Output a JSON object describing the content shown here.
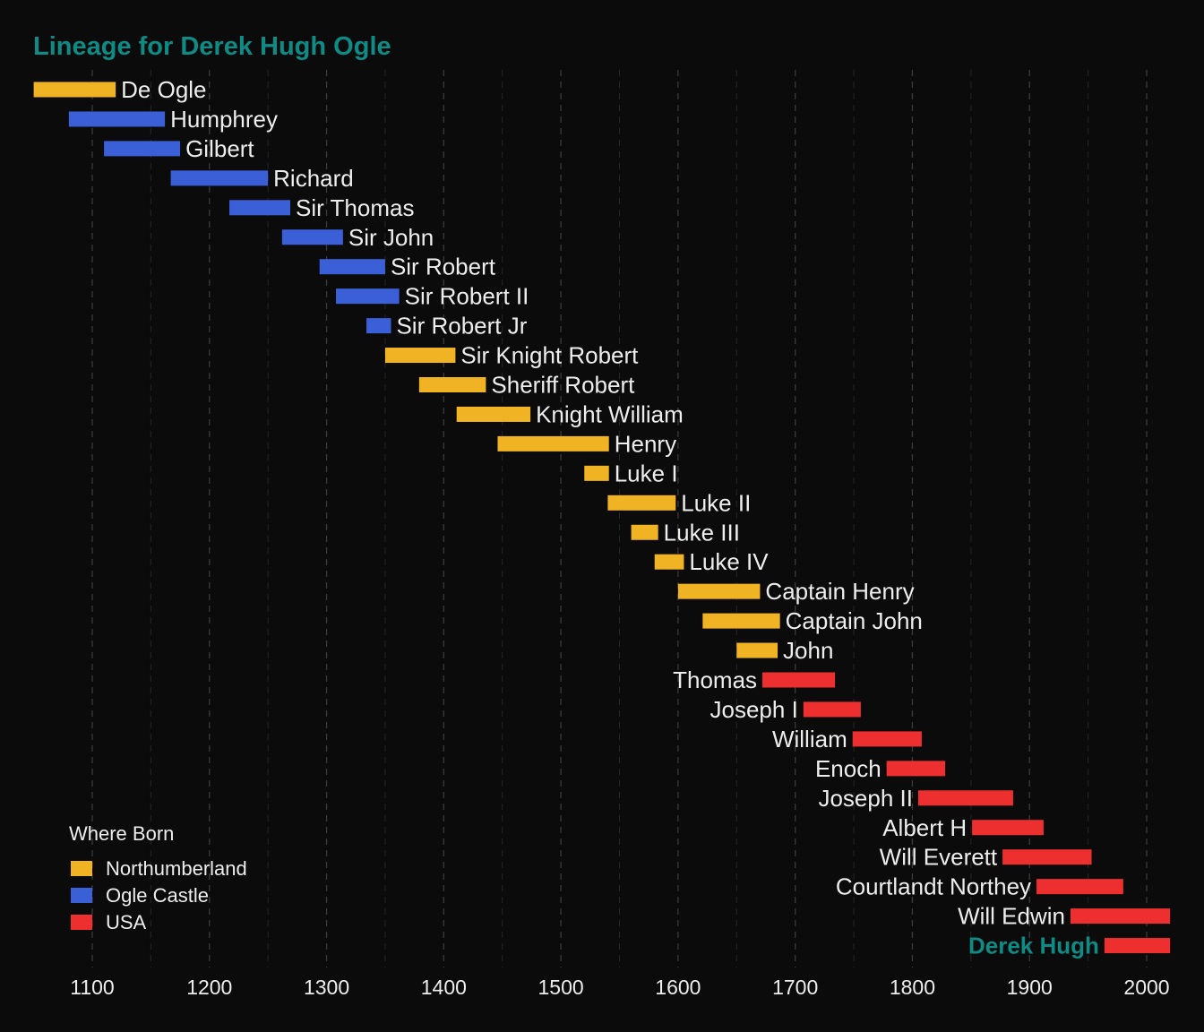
{
  "chart_data": {
    "type": "bar",
    "orientation": "horizontal-timeline",
    "title": "Lineage for Derek Hugh Ogle",
    "xlim": [
      1050,
      2020
    ],
    "xticks": [
      1100,
      1200,
      1300,
      1400,
      1500,
      1600,
      1700,
      1800,
      1900,
      2000
    ],
    "grid": true,
    "legend": {
      "title": "Where Born",
      "placement": "bottom-left",
      "entries": [
        {
          "name": "Northumberland",
          "color": "#f0b323"
        },
        {
          "name": "Ogle Castle",
          "color": "#3a5fd6"
        },
        {
          "name": "USA",
          "color": "#ee2f2f"
        }
      ]
    },
    "highlight": "Derek Hugh",
    "people": [
      {
        "name": "De Ogle",
        "start": 1050,
        "end": 1120,
        "born": "Northumberland",
        "label_side": "right"
      },
      {
        "name": "Humphrey",
        "start": 1080,
        "end": 1162,
        "born": "Ogle Castle",
        "label_side": "right"
      },
      {
        "name": "Gilbert",
        "start": 1110,
        "end": 1175,
        "born": "Ogle Castle",
        "label_side": "right"
      },
      {
        "name": "Richard",
        "start": 1167,
        "end": 1250,
        "born": "Ogle Castle",
        "label_side": "right"
      },
      {
        "name": "Sir Thomas",
        "start": 1217,
        "end": 1269,
        "born": "Ogle Castle",
        "label_side": "right"
      },
      {
        "name": "Sir John",
        "start": 1262,
        "end": 1314,
        "born": "Ogle Castle",
        "label_side": "right"
      },
      {
        "name": "Sir Robert",
        "start": 1294,
        "end": 1350,
        "born": "Ogle Castle",
        "label_side": "right"
      },
      {
        "name": "Sir Robert II",
        "start": 1308,
        "end": 1362,
        "born": "Ogle Castle",
        "label_side": "right"
      },
      {
        "name": "Sir Robert Jr",
        "start": 1334,
        "end": 1355,
        "born": "Ogle Castle",
        "label_side": "right"
      },
      {
        "name": "Sir Knight Robert",
        "start": 1350,
        "end": 1410,
        "born": "Northumberland",
        "label_side": "right"
      },
      {
        "name": "Sheriff Robert",
        "start": 1379,
        "end": 1436,
        "born": "Northumberland",
        "label_side": "right"
      },
      {
        "name": "Knight William",
        "start": 1411,
        "end": 1474,
        "born": "Northumberland",
        "label_side": "right"
      },
      {
        "name": "Henry",
        "start": 1446,
        "end": 1541,
        "born": "Northumberland",
        "label_side": "right"
      },
      {
        "name": "Luke I",
        "start": 1520,
        "end": 1541,
        "born": "Northumberland",
        "label_side": "right"
      },
      {
        "name": "Luke II",
        "start": 1540,
        "end": 1598,
        "born": "Northumberland",
        "label_side": "right"
      },
      {
        "name": "Luke III",
        "start": 1560,
        "end": 1583,
        "born": "Northumberland",
        "label_side": "right"
      },
      {
        "name": "Luke IV",
        "start": 1580,
        "end": 1605,
        "born": "Northumberland",
        "label_side": "right"
      },
      {
        "name": "Captain Henry",
        "start": 1600,
        "end": 1670,
        "born": "Northumberland",
        "label_side": "right"
      },
      {
        "name": "Captain John",
        "start": 1621,
        "end": 1687,
        "born": "Northumberland",
        "label_side": "right"
      },
      {
        "name": "John",
        "start": 1650,
        "end": 1685,
        "born": "Northumberland",
        "label_side": "right"
      },
      {
        "name": "Thomas",
        "start": 1672,
        "end": 1734,
        "born": "USA",
        "label_side": "left"
      },
      {
        "name": "Joseph I",
        "start": 1707,
        "end": 1756,
        "born": "USA",
        "label_side": "left"
      },
      {
        "name": "William",
        "start": 1749,
        "end": 1808,
        "born": "USA",
        "label_side": "left"
      },
      {
        "name": "Enoch",
        "start": 1778,
        "end": 1828,
        "born": "USA",
        "label_side": "left"
      },
      {
        "name": "Joseph II",
        "start": 1805,
        "end": 1886,
        "born": "USA",
        "label_side": "left"
      },
      {
        "name": "Albert H",
        "start": 1851,
        "end": 1912,
        "born": "USA",
        "label_side": "left"
      },
      {
        "name": "Will Everett",
        "start": 1877,
        "end": 1953,
        "born": "USA",
        "label_side": "left"
      },
      {
        "name": "Courtlandt Northey",
        "start": 1906,
        "end": 1980,
        "born": "USA",
        "label_side": "left"
      },
      {
        "name": "Will Edwin",
        "start": 1935,
        "end": 2020,
        "born": "USA",
        "label_side": "left"
      },
      {
        "name": "Derek Hugh",
        "start": 1964,
        "end": 2020,
        "born": "USA",
        "label_side": "left"
      }
    ]
  }
}
